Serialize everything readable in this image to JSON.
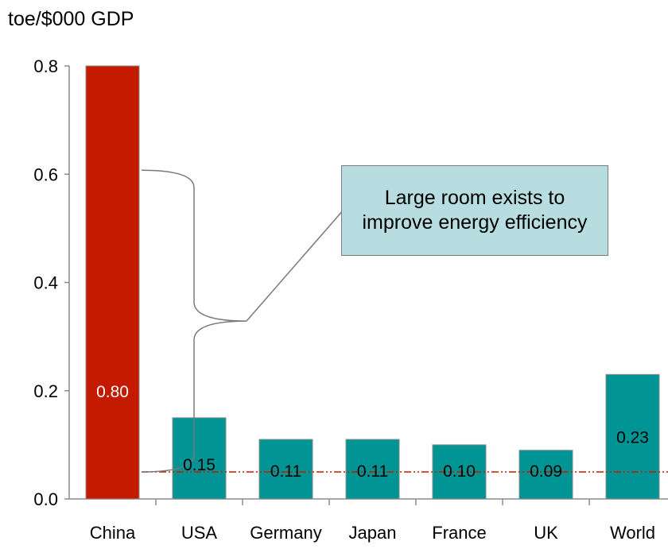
{
  "chart_data": {
    "type": "bar",
    "unit_label": "toe/$000 GDP",
    "categories": [
      "China",
      "USA",
      "Germany",
      "Japan",
      "France",
      "UK",
      "World"
    ],
    "values": [
      0.8,
      0.15,
      0.11,
      0.11,
      0.1,
      0.09,
      0.23
    ],
    "value_labels": [
      "0.80",
      "0.15",
      "0.11",
      "0.11",
      "0.10",
      "0.09",
      "0.23"
    ],
    "y_ticks": [
      "0.0",
      "0.2",
      "0.4",
      "0.6",
      "0.8"
    ],
    "y_tick_values": [
      0,
      0.2,
      0.4,
      0.6,
      0.8
    ],
    "ylim": [
      0,
      0.8
    ],
    "reference_line_value": 0.05,
    "highlight_category": "China",
    "annotation": "Large room exists to improve energy efficiency",
    "colors": {
      "highlight": "#c41a00",
      "bars": "#009594",
      "reference_line": "#c41a00",
      "callout_fill": "#b7dde0"
    },
    "grid": false
  }
}
